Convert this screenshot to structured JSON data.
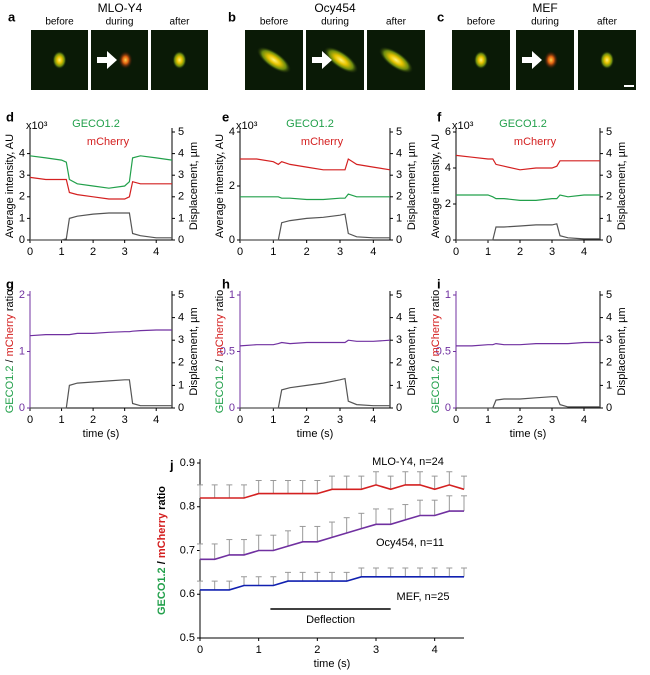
{
  "image_panels": [
    {
      "panel": "a",
      "title": "MLO-Y4",
      "frames": [
        "before",
        "during",
        "after"
      ]
    },
    {
      "panel": "b",
      "title": "Ocy454",
      "frames": [
        "before",
        "during",
        "after"
      ]
    },
    {
      "panel": "c",
      "title": "MEF",
      "frames": [
        "before",
        "during",
        "after"
      ]
    }
  ],
  "chart_data": [
    {
      "panel": "d",
      "type": "line",
      "y_label": "Average intensity, AU",
      "y_unit": "x10³",
      "y2_label": "Displacement, µm",
      "x": [
        0,
        0.5,
        1,
        1.15,
        1.25,
        1.5,
        2,
        2.5,
        3,
        3.15,
        3.25,
        3.5,
        4,
        4.5
      ],
      "xlim": [
        0,
        4.5
      ],
      "xticks": [
        0,
        1,
        2,
        3,
        4
      ],
      "ylim": [
        0,
        5
      ],
      "yticks": [
        0,
        1,
        2,
        3,
        4
      ],
      "y2lim": [
        0,
        5
      ],
      "y2ticks": [
        0,
        1,
        2,
        3,
        4,
        5
      ],
      "series": [
        {
          "name": "GECO1.2",
          "color": "#22a04b",
          "values": [
            3.9,
            3.8,
            3.7,
            3.6,
            2.8,
            2.6,
            2.5,
            2.4,
            2.5,
            2.7,
            3.8,
            3.9,
            3.8,
            3.7
          ]
        },
        {
          "name": "mCherry",
          "color": "#d42020",
          "values": [
            2.9,
            2.8,
            2.8,
            2.8,
            2.2,
            2.1,
            2.0,
            1.9,
            1.9,
            2.0,
            2.7,
            2.6,
            2.6,
            2.6
          ]
        },
        {
          "color": "#555555",
          "axis": "y2",
          "values": [
            0,
            0,
            0,
            0.05,
            1.0,
            1.1,
            1.2,
            1.25,
            1.25,
            1.25,
            0.3,
            0.2,
            0.1,
            0.1
          ]
        }
      ]
    },
    {
      "panel": "e",
      "type": "line",
      "y_label": "Average intensity, AU",
      "y_unit": "x10³",
      "y2_label": "Displacement, µm",
      "x": [
        0,
        0.5,
        1,
        1.15,
        1.25,
        1.5,
        2,
        2.5,
        3,
        3.15,
        3.25,
        3.5,
        4,
        4.5
      ],
      "xlim": [
        0,
        4.5
      ],
      "xticks": [
        0,
        1,
        2,
        3,
        4
      ],
      "ylim": [
        0,
        4
      ],
      "yticks": [
        0,
        2,
        4
      ],
      "y2lim": [
        0,
        5
      ],
      "y2ticks": [
        0,
        1,
        2,
        3,
        4,
        5
      ],
      "series": [
        {
          "name": "GECO1.2",
          "color": "#22a04b",
          "values": [
            1.6,
            1.6,
            1.6,
            1.6,
            1.55,
            1.55,
            1.5,
            1.5,
            1.55,
            1.55,
            1.7,
            1.6,
            1.6,
            1.6
          ]
        },
        {
          "name": "mCherry",
          "color": "#d42020",
          "values": [
            3.0,
            3.0,
            2.9,
            2.8,
            2.9,
            2.8,
            2.7,
            2.6,
            2.6,
            2.6,
            3.0,
            2.8,
            2.7,
            2.6
          ]
        },
        {
          "color": "#555555",
          "axis": "y2",
          "values": [
            0,
            0,
            0,
            0,
            0.8,
            0.9,
            1.0,
            1.05,
            1.15,
            1.2,
            0.3,
            0.15,
            0.1,
            0.1
          ]
        }
      ]
    },
    {
      "panel": "f",
      "type": "line",
      "y_label": "Average intensity, AU",
      "y_unit": "x10³",
      "y2_label": "Displacement, µm",
      "x": [
        0,
        0.5,
        1,
        1.15,
        1.25,
        1.5,
        2,
        2.5,
        3,
        3.15,
        3.25,
        3.5,
        4,
        4.5
      ],
      "xlim": [
        0,
        4.5
      ],
      "xticks": [
        0,
        1,
        2,
        3,
        4
      ],
      "ylim": [
        0,
        6
      ],
      "yticks": [
        0,
        2,
        4,
        6
      ],
      "y2lim": [
        0,
        5
      ],
      "y2ticks": [
        0,
        1,
        2,
        3,
        4,
        5
      ],
      "series": [
        {
          "name": "GECO1.2",
          "color": "#22a04b",
          "values": [
            2.5,
            2.5,
            2.5,
            2.4,
            2.3,
            2.3,
            2.2,
            2.2,
            2.3,
            2.3,
            2.5,
            2.4,
            2.5,
            2.5
          ]
        },
        {
          "name": "mCherry",
          "color": "#d42020",
          "values": [
            4.7,
            4.6,
            4.5,
            4.5,
            4.2,
            4.1,
            3.9,
            4.0,
            4.0,
            4.1,
            4.4,
            4.4,
            4.4,
            4.4
          ]
        },
        {
          "color": "#555555",
          "axis": "y2",
          "values": [
            0,
            0,
            0,
            0,
            0.6,
            0.6,
            0.65,
            0.7,
            0.7,
            0.75,
            0.2,
            0.1,
            0.05,
            0.05
          ]
        }
      ]
    },
    {
      "panel": "g",
      "type": "line",
      "x_label": "time (s)",
      "y2_label": "Displacement, µm",
      "y_axis_color": "#7030a0",
      "y_label_parts": [
        {
          "text": "GECO1.2",
          "color": "#22a04b"
        },
        {
          "text": "/",
          "color": "#000000"
        },
        {
          "text": "mCherry",
          "color": "#d42020"
        },
        {
          "text": "ratio",
          "color": "#000000"
        }
      ],
      "x": [
        0,
        0.5,
        1,
        1.15,
        1.25,
        1.5,
        2,
        2.5,
        3,
        3.15,
        3.25,
        3.5,
        4,
        4.5
      ],
      "xlim": [
        0,
        4.5
      ],
      "xticks": [
        0,
        1,
        2,
        3,
        4
      ],
      "ylim": [
        0,
        2
      ],
      "yticks": [
        0,
        1,
        2
      ],
      "y2lim": [
        0,
        5
      ],
      "y2ticks": [
        0,
        1,
        2,
        3,
        4,
        5
      ],
      "series": [
        {
          "color": "#7030a0",
          "values": [
            1.28,
            1.3,
            1.3,
            1.3,
            1.3,
            1.32,
            1.32,
            1.34,
            1.35,
            1.35,
            1.36,
            1.37,
            1.38,
            1.38
          ]
        },
        {
          "color": "#555555",
          "axis": "y2",
          "values": [
            0,
            0,
            0,
            0,
            1.0,
            1.1,
            1.15,
            1.2,
            1.25,
            1.25,
            0.2,
            0.1,
            0.1,
            0.1
          ]
        }
      ]
    },
    {
      "panel": "h",
      "type": "line",
      "x_label": "time (s)",
      "y2_label": "Displacement, µm",
      "y_axis_color": "#7030a0",
      "y_label_parts": [
        {
          "text": "GECO1.2",
          "color": "#22a04b"
        },
        {
          "text": "/",
          "color": "#000000"
        },
        {
          "text": "mCherry",
          "color": "#d42020"
        },
        {
          "text": "ratio",
          "color": "#000000"
        }
      ],
      "x": [
        0,
        0.5,
        1,
        1.15,
        1.25,
        1.5,
        2,
        2.5,
        3,
        3.15,
        3.25,
        3.5,
        4,
        4.5
      ],
      "xlim": [
        0,
        4.5
      ],
      "xticks": [
        0,
        1,
        2,
        3,
        4
      ],
      "ylim": [
        0,
        1
      ],
      "yticks": [
        0,
        0.5,
        1
      ],
      "y2lim": [
        0,
        5
      ],
      "y2ticks": [
        0,
        1,
        2,
        3,
        4,
        5
      ],
      "series": [
        {
          "color": "#7030a0",
          "values": [
            0.55,
            0.56,
            0.56,
            0.57,
            0.58,
            0.57,
            0.58,
            0.58,
            0.58,
            0.58,
            0.6,
            0.59,
            0.59,
            0.6
          ]
        },
        {
          "color": "#555555",
          "axis": "y2",
          "values": [
            0,
            0,
            0,
            0,
            0.8,
            0.9,
            1.0,
            1.1,
            1.25,
            1.3,
            0.3,
            0.15,
            0.1,
            0.1
          ]
        }
      ]
    },
    {
      "panel": "i",
      "type": "line",
      "x_label": "time (s)",
      "y2_label": "Displacement, µm",
      "y_axis_color": "#7030a0",
      "y_label_parts": [
        {
          "text": "GECO1.2",
          "color": "#22a04b"
        },
        {
          "text": "/",
          "color": "#000000"
        },
        {
          "text": "mCherry",
          "color": "#d42020"
        },
        {
          "text": "ratio",
          "color": "#000000"
        }
      ],
      "x": [
        0,
        0.5,
        1,
        1.15,
        1.25,
        1.5,
        2,
        2.5,
        3,
        3.15,
        3.25,
        3.5,
        4,
        4.5
      ],
      "xlim": [
        0,
        4.5
      ],
      "xticks": [
        0,
        1,
        2,
        3,
        4
      ],
      "ylim": [
        0,
        1
      ],
      "yticks": [
        0,
        0.5,
        1
      ],
      "y2lim": [
        0,
        5
      ],
      "y2ticks": [
        0,
        1,
        2,
        3,
        4,
        5
      ],
      "series": [
        {
          "color": "#7030a0",
          "values": [
            0.55,
            0.55,
            0.56,
            0.56,
            0.57,
            0.56,
            0.56,
            0.57,
            0.57,
            0.57,
            0.57,
            0.57,
            0.58,
            0.58
          ]
        },
        {
          "color": "#555555",
          "axis": "y2",
          "values": [
            0,
            0,
            0,
            0,
            0.35,
            0.4,
            0.4,
            0.45,
            0.5,
            0.5,
            0.15,
            0.05,
            0.05,
            0.05
          ]
        }
      ]
    },
    {
      "panel": "j",
      "type": "line",
      "x_label": "time (s)",
      "y_label_parts": [
        {
          "text": "GECO1.2",
          "color": "#22a04b"
        },
        {
          "text": "/",
          "color": "#000000"
        },
        {
          "text": "mCherry",
          "color": "#d42020"
        },
        {
          "text": "ratio",
          "color": "#000000"
        }
      ],
      "x": [
        0,
        0.25,
        0.5,
        0.75,
        1,
        1.25,
        1.5,
        1.75,
        2,
        2.25,
        2.5,
        2.75,
        3,
        3.25,
        3.5,
        3.75,
        4,
        4.25,
        4.5
      ],
      "xlim": [
        0,
        4.5
      ],
      "xticks": [
        0,
        1,
        2,
        3,
        4
      ],
      "ylim": [
        0.5,
        0.9
      ],
      "yticks": [
        0.5,
        0.6,
        0.7,
        0.8,
        0.9
      ],
      "deflection": {
        "label": "Deflection",
        "x": [
          1.2,
          3.25
        ]
      },
      "series": [
        {
          "name": "MLO-Y4, n=24",
          "color": "#d42020",
          "values": [
            0.82,
            0.82,
            0.82,
            0.82,
            0.83,
            0.83,
            0.83,
            0.83,
            0.83,
            0.84,
            0.84,
            0.84,
            0.85,
            0.84,
            0.85,
            0.85,
            0.84,
            0.85,
            0.84
          ],
          "errors": [
            0.03,
            0.03,
            0.03,
            0.03,
            0.03,
            0.03,
            0.03,
            0.03,
            0.03,
            0.03,
            0.03,
            0.03,
            0.03,
            0.03,
            0.03,
            0.03,
            0.03,
            0.03,
            0.03
          ]
        },
        {
          "name": "Ocy454, n=11",
          "color": "#7030a0",
          "values": [
            0.68,
            0.68,
            0.69,
            0.69,
            0.7,
            0.7,
            0.71,
            0.72,
            0.72,
            0.73,
            0.74,
            0.75,
            0.76,
            0.76,
            0.77,
            0.78,
            0.78,
            0.79,
            0.79
          ],
          "errors": [
            0.035,
            0.035,
            0.035,
            0.035,
            0.035,
            0.035,
            0.035,
            0.035,
            0.035,
            0.035,
            0.035,
            0.035,
            0.035,
            0.035,
            0.035,
            0.035,
            0.035,
            0.035,
            0.035
          ]
        },
        {
          "name": "MEF, n=25",
          "color": "#1020b0",
          "values": [
            0.61,
            0.61,
            0.61,
            0.62,
            0.62,
            0.62,
            0.63,
            0.63,
            0.63,
            0.63,
            0.63,
            0.64,
            0.64,
            0.64,
            0.64,
            0.64,
            0.64,
            0.64,
            0.64
          ],
          "errors": [
            0.02,
            0.02,
            0.02,
            0.02,
            0.02,
            0.02,
            0.02,
            0.02,
            0.02,
            0.02,
            0.02,
            0.02,
            0.02,
            0.02,
            0.02,
            0.02,
            0.02,
            0.02,
            0.02
          ]
        }
      ]
    }
  ]
}
